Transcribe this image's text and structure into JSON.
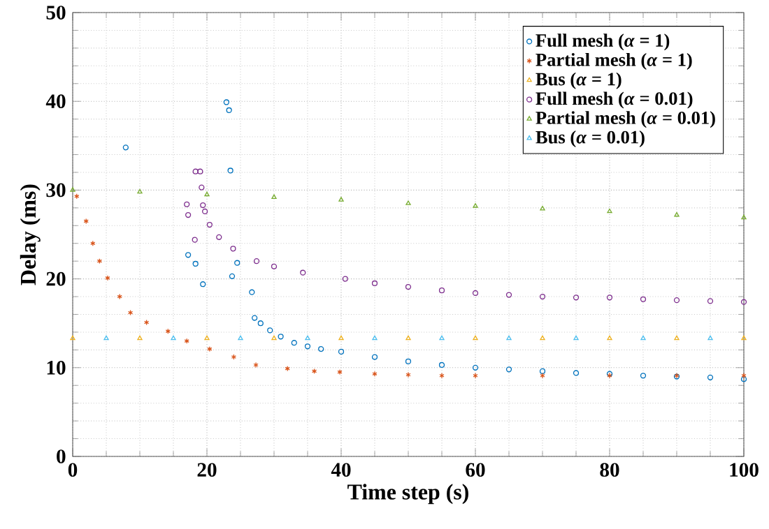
{
  "chart_data": {
    "type": "scatter",
    "xlabel": "Time step (s)",
    "ylabel": "Delay (ms)",
    "xlim": [
      0,
      100
    ],
    "ylim": [
      0,
      50
    ],
    "xticks": [
      0,
      20,
      40,
      60,
      80,
      100
    ],
    "yticks": [
      0,
      10,
      20,
      30,
      40,
      50
    ],
    "grid": true,
    "legend": "top right",
    "series": [
      {
        "name": "Full mesh (*α* = 1)",
        "color": "#0072bd",
        "marker": "circle",
        "x": [
          7.9,
          17.2,
          18.3,
          19.4,
          22.9,
          23.3,
          23.5,
          23.75,
          24.5,
          26.7,
          27.1,
          28,
          29.4,
          31,
          33,
          35,
          37,
          40,
          45,
          50,
          55,
          60,
          65,
          70,
          75,
          80,
          85,
          90,
          95,
          100
        ],
        "values": [
          34.8,
          22.7,
          21.7,
          19.4,
          39.9,
          39.0,
          32.2,
          20.3,
          21.8,
          18.5,
          15.6,
          15.0,
          14.2,
          13.5,
          12.8,
          12.4,
          12.1,
          11.8,
          11.2,
          10.7,
          10.3,
          10.0,
          9.8,
          9.6,
          9.4,
          9.3,
          9.1,
          9.0,
          8.9,
          8.7
        ]
      },
      {
        "name": "Partial mesh (*α* = 1)",
        "color": "#d95319",
        "marker": "cross",
        "x": [
          0.6,
          2,
          3,
          4,
          5.2,
          7,
          8.6,
          11,
          14.2,
          17,
          20.4,
          24,
          27.3,
          32,
          36,
          39.8,
          45,
          50,
          55,
          60,
          70,
          80,
          90,
          100
        ],
        "values": [
          29.3,
          26.5,
          24.0,
          22.0,
          20.1,
          18.0,
          16.2,
          15.1,
          14.1,
          13.0,
          12.1,
          11.2,
          10.3,
          9.9,
          9.6,
          9.5,
          9.3,
          9.2,
          9.1,
          9.1,
          9.1,
          9.1,
          9.1,
          9.1
        ]
      },
      {
        "name": "Bus (*α* = 1)",
        "color": "#edb120",
        "marker": "triangle",
        "x": [
          0,
          10,
          20,
          30,
          40,
          50,
          60,
          70,
          80,
          90,
          100
        ],
        "values": [
          13.3,
          13.3,
          13.3,
          13.3,
          13.3,
          13.3,
          13.3,
          13.3,
          13.3,
          13.3,
          13.3
        ]
      },
      {
        "name": "Full mesh (*α* = 0.01)",
        "color": "#7e2f8e",
        "marker": "circle",
        "x": [
          17.0,
          17.2,
          18.2,
          18.3,
          19.0,
          19.2,
          19.4,
          19.7,
          20.4,
          21.8,
          23.9,
          27.4,
          30,
          34.3,
          40.6,
          45,
          50,
          55,
          60,
          65,
          70,
          75,
          80,
          85,
          90,
          95,
          100
        ],
        "values": [
          28.4,
          27.2,
          24.4,
          32.1,
          32.1,
          30.3,
          28.3,
          27.6,
          26.1,
          24.7,
          23.4,
          22.0,
          21.4,
          20.7,
          20.0,
          19.5,
          19.1,
          18.7,
          18.4,
          18.2,
          18.0,
          17.9,
          17.9,
          17.7,
          17.6,
          17.5,
          17.4
        ]
      },
      {
        "name": "Partial mesh (*α* = 0.01)",
        "color": "#77ac30",
        "marker": "triangle",
        "x": [
          0,
          10,
          20,
          30,
          40,
          50,
          60,
          70,
          80,
          90,
          100
        ],
        "values": [
          30.0,
          29.8,
          29.5,
          29.2,
          28.9,
          28.5,
          28.2,
          27.9,
          27.6,
          27.2,
          26.9
        ]
      },
      {
        "name": "Bus (*α* = 0.01)",
        "color": "#4dbeee",
        "marker": "triangle",
        "x": [
          5,
          15,
          25,
          35,
          45,
          55,
          65,
          75,
          85,
          95
        ],
        "values": [
          13.3,
          13.3,
          13.3,
          13.3,
          13.3,
          13.3,
          13.3,
          13.3,
          13.3,
          13.3
        ]
      }
    ]
  }
}
